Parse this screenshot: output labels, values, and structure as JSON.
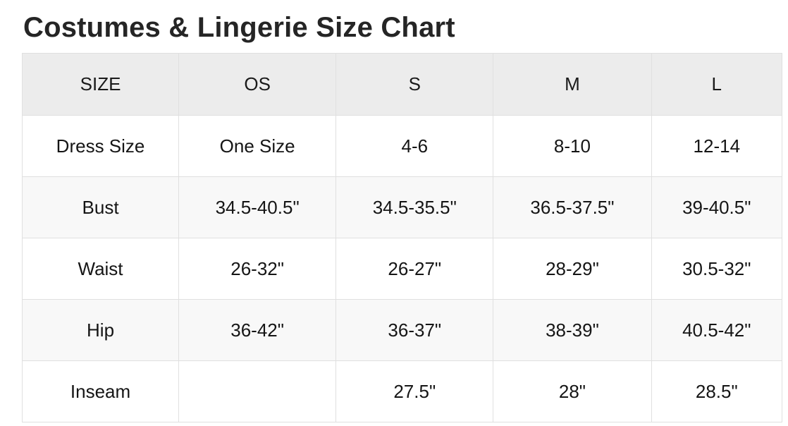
{
  "page": {
    "title": "Costumes & Lingerie Size Chart"
  },
  "table": {
    "headers": [
      "SIZE",
      "OS",
      "S",
      "M",
      "L"
    ],
    "rows": [
      {
        "label": "Dress Size",
        "values": [
          "One Size",
          "4-6",
          "8-10",
          "12-14"
        ]
      },
      {
        "label": "Bust",
        "values": [
          "34.5-40.5\"",
          "34.5-35.5\"",
          "36.5-37.5\"",
          "39-40.5\""
        ]
      },
      {
        "label": "Waist",
        "values": [
          "26-32\"",
          "26-27\"",
          "28-29\"",
          "30.5-32\""
        ]
      },
      {
        "label": "Hip",
        "values": [
          "36-42\"",
          "36-37\"",
          "38-39\"",
          "40.5-42\""
        ]
      },
      {
        "label": "Inseam",
        "values": [
          "",
          "27.5\"",
          "28\"",
          "28.5\""
        ]
      }
    ]
  },
  "chart_data": {
    "type": "table",
    "title": "Costumes & Lingerie Size Chart",
    "columns": [
      "SIZE",
      "OS",
      "S",
      "M",
      "L"
    ],
    "rows": [
      [
        "Dress Size",
        "One Size",
        "4-6",
        "8-10",
        "12-14"
      ],
      [
        "Bust",
        "34.5-40.5\"",
        "34.5-35.5\"",
        "36.5-37.5\"",
        "39-40.5\""
      ],
      [
        "Waist",
        "26-32\"",
        "26-27\"",
        "28-29\"",
        "30.5-32\""
      ],
      [
        "Hip",
        "36-42\"",
        "36-37\"",
        "38-39\"",
        "40.5-42\""
      ],
      [
        "Inseam",
        "",
        "27.5\"",
        "28\"",
        "28.5\""
      ]
    ],
    "layout_hints": {
      "header_background": "#ececec",
      "stripe_background": "#f8f8f8",
      "border_color": "#e0e0e0",
      "title_color": "#252525",
      "text_color": "#151515",
      "striped_rows": [
        "Bust",
        "Hip"
      ]
    }
  }
}
